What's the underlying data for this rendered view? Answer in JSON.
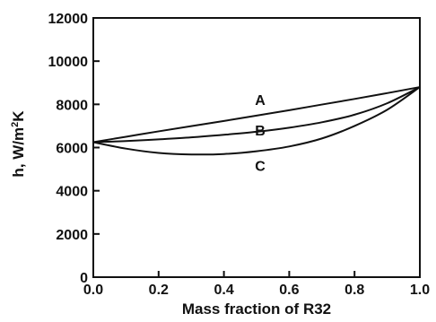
{
  "chart_data": {
    "type": "line",
    "title": "",
    "xlabel": "Mass fraction of R32",
    "ylabel_main": "h,  W/m",
    "ylabel_sup": "2",
    "ylabel_tail": "K",
    "xlim": [
      0.0,
      1.0
    ],
    "ylim": [
      0,
      12000
    ],
    "xticks": [
      0.0,
      0.2,
      0.4,
      0.6,
      0.8,
      1.0
    ],
    "xtick_labels": [
      "0.0",
      "0.2",
      "0.4",
      "0.6",
      "0.8",
      "1.0"
    ],
    "yticks": [
      0,
      2000,
      4000,
      6000,
      8000,
      10000,
      12000
    ],
    "ytick_labels": [
      "0",
      "2000",
      "4000",
      "6000",
      "8000",
      "10000",
      "12000"
    ],
    "grid": false,
    "series": [
      {
        "name": "A",
        "x": [
          0.0,
          0.1,
          0.2,
          0.3,
          0.4,
          0.5,
          0.6,
          0.7,
          0.8,
          0.9,
          1.0
        ],
        "y": [
          6250,
          6500,
          6750,
          6990,
          7230,
          7480,
          7730,
          7990,
          8250,
          8520,
          8800
        ]
      },
      {
        "name": "B",
        "x": [
          0.0,
          0.1,
          0.2,
          0.3,
          0.4,
          0.5,
          0.6,
          0.7,
          0.8,
          0.9,
          1.0
        ],
        "y": [
          6250,
          6300,
          6380,
          6470,
          6590,
          6730,
          6920,
          7170,
          7520,
          8050,
          8800
        ]
      },
      {
        "name": "C",
        "x": [
          0.0,
          0.1,
          0.2,
          0.3,
          0.4,
          0.5,
          0.6,
          0.7,
          0.8,
          0.9,
          1.0
        ],
        "y": [
          6250,
          5950,
          5750,
          5680,
          5700,
          5830,
          6050,
          6420,
          7000,
          7750,
          8800
        ]
      }
    ]
  }
}
